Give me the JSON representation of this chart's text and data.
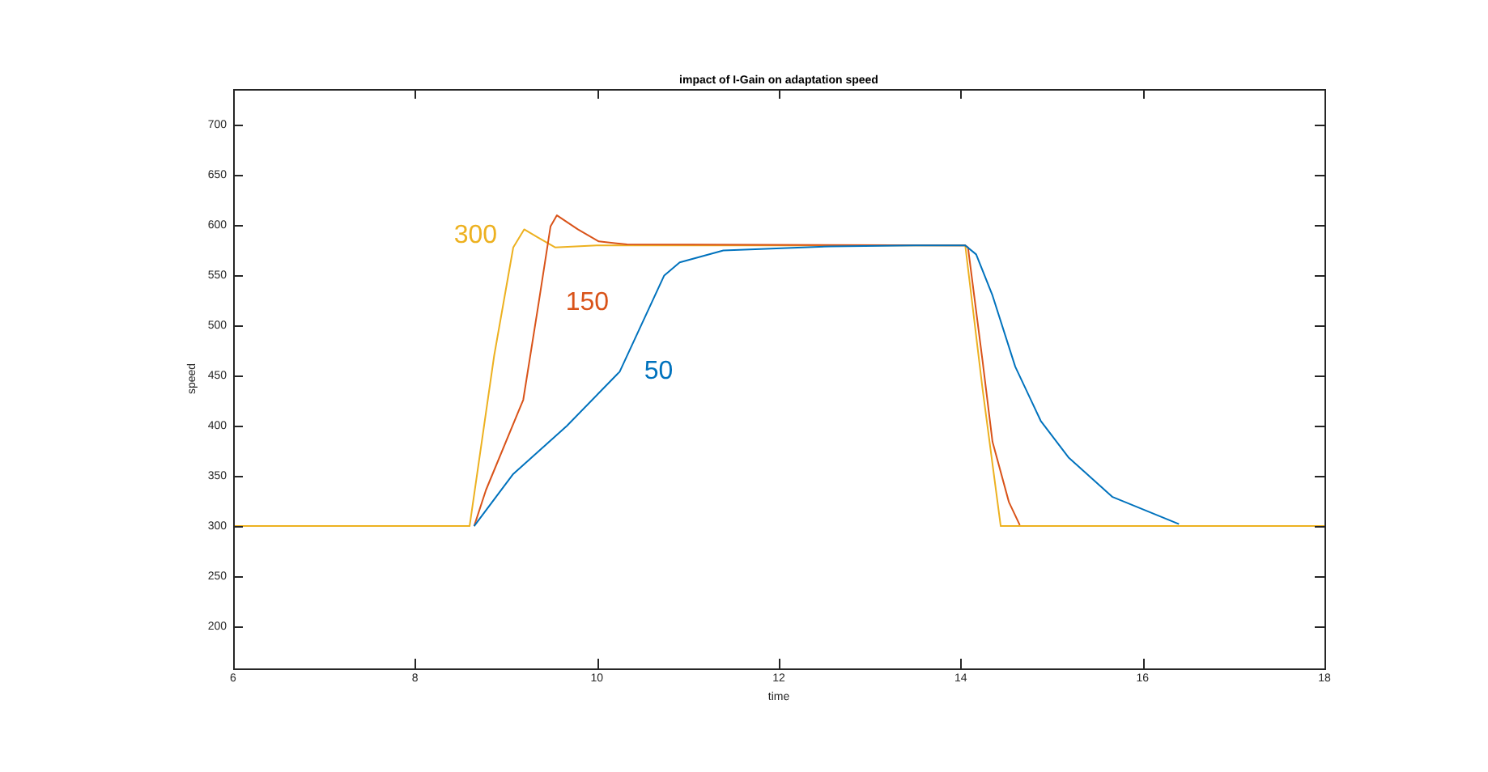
{
  "chart_data": {
    "type": "line",
    "title": "impact of I-Gain on adaptation speed",
    "xlabel": "time",
    "ylabel": "speed",
    "xlim": [
      6,
      18
    ],
    "xticks": [
      6,
      8,
      10,
      12,
      14,
      16,
      18
    ],
    "ylim": [
      158,
      736
    ],
    "yticks": [
      200,
      250,
      300,
      350,
      400,
      450,
      500,
      550,
      600,
      650,
      700
    ],
    "series": [
      {
        "name": "50",
        "color": "#0072bd",
        "x": [
          8.65,
          9.08,
          9.67,
          10.25,
          10.74,
          10.91,
          11.39,
          12.57,
          13.5,
          14.05,
          14.17,
          14.35,
          14.6,
          14.88,
          15.19,
          15.67,
          16.4
        ],
        "values": [
          300,
          352,
          400,
          454,
          550,
          563,
          575,
          579,
          580,
          580,
          571,
          530,
          459,
          405,
          368,
          329,
          302
        ]
      },
      {
        "name": "150",
        "color": "#d95319",
        "x": [
          8.65,
          8.78,
          9.19,
          9.36,
          9.49,
          9.56,
          9.79,
          10.02,
          10.33,
          14.05,
          14.08,
          14.24,
          14.35,
          14.53,
          14.65
        ],
        "values": [
          300,
          336,
          426,
          523,
          599,
          610,
          596,
          584,
          581,
          580,
          578,
          465,
          384,
          324,
          301
        ]
      },
      {
        "name": "300",
        "color": "#edb120",
        "x": [
          6,
          8.6,
          8.87,
          9.08,
          9.2,
          9.35,
          9.54,
          10,
          14.05,
          14.24,
          14.44,
          18
        ],
        "values": [
          300,
          300,
          470,
          578,
          596,
          588,
          578,
          580,
          580,
          437,
          300,
          300
        ]
      }
    ]
  }
}
